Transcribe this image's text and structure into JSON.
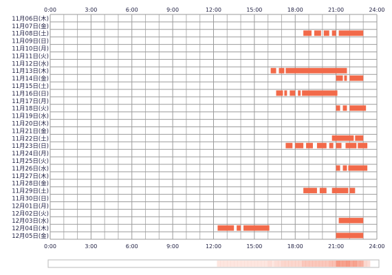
{
  "chart_data": {
    "type": "timeline",
    "title": "",
    "xlabel": "",
    "ylabel": "",
    "x_range": [
      "0:00",
      "24:00"
    ],
    "x_ticks": [
      "0:00",
      "3:00",
      "6:00",
      "9:00",
      "12:00",
      "15:00",
      "18:00",
      "21:00",
      "24:00"
    ],
    "rows": [
      "11月06日(木)",
      "11月07日(金)",
      "11月08日(土)",
      "11月09日(日)",
      "11月10日(月)",
      "11月11日(火)",
      "11月12日(水)",
      "11月13日(木)",
      "11月14日(金)",
      "11月15日(土)",
      "11月16日(日)",
      "11月17日(月)",
      "11月18日(火)",
      "11月19日(水)",
      "11月20日(木)",
      "11月21日(金)",
      "11月22日(土)",
      "11月23日(日)",
      "11月24日(月)",
      "11月25日(火)",
      "11月26日(水)",
      "11月27日(木)",
      "11月28日(金)",
      "11月29日(土)",
      "11月30日(日)",
      "12月01日(月)",
      "12月02日(火)",
      "12月03日(水)",
      "12月04日(木)",
      "12月05日(金)"
    ],
    "bar_color": "#f26a4a",
    "grid": true,
    "activity": [
      {
        "row": 2,
        "segments": [
          [
            18.6,
            19.2
          ],
          [
            19.4,
            19.9
          ],
          [
            20.1,
            20.5
          ],
          [
            20.7,
            21.0
          ],
          [
            21.2,
            23.0
          ]
        ]
      },
      {
        "row": 7,
        "segments": [
          [
            16.2,
            16.6
          ],
          [
            16.8,
            17.2
          ],
          [
            17.3,
            21.8
          ]
        ]
      },
      {
        "row": 8,
        "segments": [
          [
            21.0,
            21.5
          ],
          [
            21.6,
            21.8
          ],
          [
            22.0,
            23.0
          ]
        ]
      },
      {
        "row": 10,
        "segments": [
          [
            16.6,
            17.1
          ],
          [
            17.2,
            17.4
          ],
          [
            17.6,
            18.0
          ],
          [
            18.2,
            18.4
          ],
          [
            18.5,
            21.1
          ]
        ]
      },
      {
        "row": 12,
        "segments": [
          [
            21.0,
            21.3
          ],
          [
            21.5,
            21.8
          ],
          [
            22.0,
            23.2
          ]
        ]
      },
      {
        "row": 16,
        "segments": [
          [
            20.7,
            22.3
          ],
          [
            22.4,
            23.0
          ]
        ]
      },
      {
        "row": 17,
        "segments": [
          [
            17.3,
            17.8
          ],
          [
            18.0,
            18.6
          ],
          [
            18.8,
            19.3
          ],
          [
            19.6,
            20.3
          ],
          [
            20.5,
            20.8
          ],
          [
            21.0,
            21.4
          ],
          [
            21.7,
            22.5
          ],
          [
            22.6,
            23.3
          ]
        ]
      },
      {
        "row": 20,
        "segments": [
          [
            21.0,
            21.3
          ],
          [
            21.5,
            21.8
          ],
          [
            21.9,
            23.3
          ]
        ]
      },
      {
        "row": 23,
        "segments": [
          [
            18.6,
            19.6
          ],
          [
            19.8,
            20.3
          ],
          [
            20.7,
            21.9
          ],
          [
            22.0,
            22.4
          ]
        ]
      },
      {
        "row": 27,
        "segments": [
          [
            21.2,
            23.0
          ]
        ]
      },
      {
        "row": 28,
        "segments": [
          [
            12.3,
            13.5
          ],
          [
            13.7,
            14.0
          ],
          [
            14.2,
            16.1
          ]
        ]
      },
      {
        "row": 29,
        "segments": [
          [
            21.0,
            23.0
          ]
        ]
      }
    ],
    "heat_strip_color": "#f26a4a"
  }
}
